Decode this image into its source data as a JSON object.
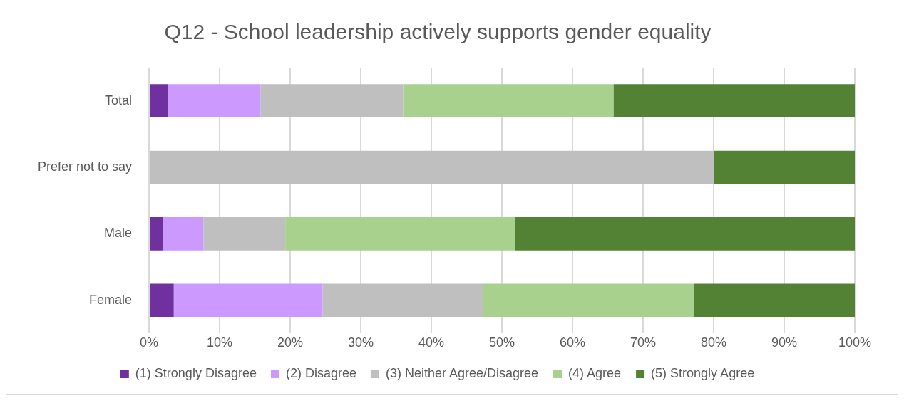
{
  "chart_data": {
    "type": "bar",
    "orientation": "horizontal",
    "stacked": true,
    "title": "Q12 - School leadership actively supports gender equality",
    "categories": [
      "Total",
      "Prefer not to say",
      "Male",
      "Female"
    ],
    "series": [
      {
        "name": "(1) Strongly Disagree",
        "color": "#7030a0",
        "values": [
          2.7,
          null,
          2.0,
          3.5
        ]
      },
      {
        "name": "(2) Disagree",
        "color": "#cc99ff",
        "values": [
          13.1,
          null,
          5.7,
          21.1
        ]
      },
      {
        "name": "(3) Neither Agree/Disagree",
        "color": "#bfbfbf",
        "values": [
          20.2,
          80.0,
          11.6,
          22.7
        ]
      },
      {
        "name": "(4) Agree",
        "color": "#a9d18e",
        "values": [
          29.8,
          null,
          32.6,
          29.9
        ]
      },
      {
        "name": "(5) Strongly Agree",
        "color": "#548235",
        "values": [
          34.2,
          20.0,
          48.1,
          22.8
        ]
      }
    ],
    "xlim": [
      0,
      100
    ],
    "xticks": [
      {
        "value": 0,
        "label": "0%"
      },
      {
        "value": 10,
        "label": "10%"
      },
      {
        "value": 20,
        "label": "20%"
      },
      {
        "value": 30,
        "label": "30%"
      },
      {
        "value": 40,
        "label": "40%"
      },
      {
        "value": 50,
        "label": "50%"
      },
      {
        "value": 60,
        "label": "60%"
      },
      {
        "value": 70,
        "label": "70%"
      },
      {
        "value": 80,
        "label": "80%"
      },
      {
        "value": 90,
        "label": "90%"
      },
      {
        "value": 100,
        "label": "100%"
      }
    ],
    "grid": "x",
    "legend": "bottom"
  }
}
